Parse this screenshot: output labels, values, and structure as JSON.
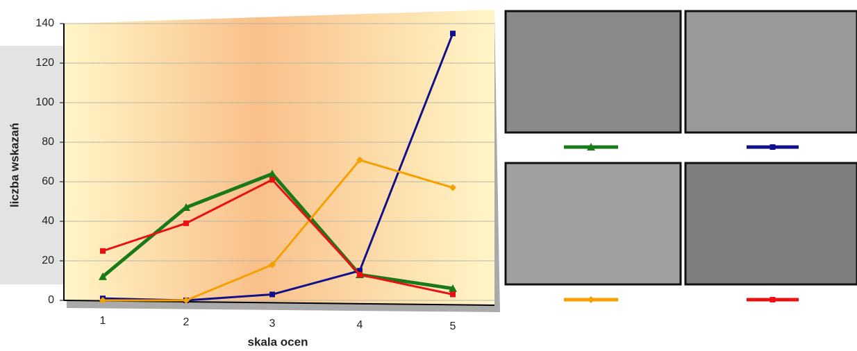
{
  "chart_data": {
    "type": "line",
    "x_label": "skala ocen",
    "y_label": "liczba wskazań",
    "categories": [
      "1",
      "2",
      "3",
      "4",
      "5"
    ],
    "series": [
      {
        "color": "#1a7a1a",
        "marker": "triangle",
        "values": [
          12,
          47,
          64,
          13,
          6
        ]
      },
      {
        "color": "#10108a",
        "marker": "square",
        "values": [
          1,
          0,
          3,
          15,
          135
        ]
      },
      {
        "color": "#f5a000",
        "marker": "diamond",
        "values": [
          0,
          0,
          18,
          71,
          57
        ]
      },
      {
        "color": "#e81010",
        "marker": "square",
        "values": [
          25,
          39,
          61,
          13,
          3
        ]
      }
    ],
    "ylim": [
      0,
      140
    ],
    "yticks": [
      0,
      20,
      40,
      60,
      80,
      100,
      120,
      140
    ],
    "grid": true
  }
}
